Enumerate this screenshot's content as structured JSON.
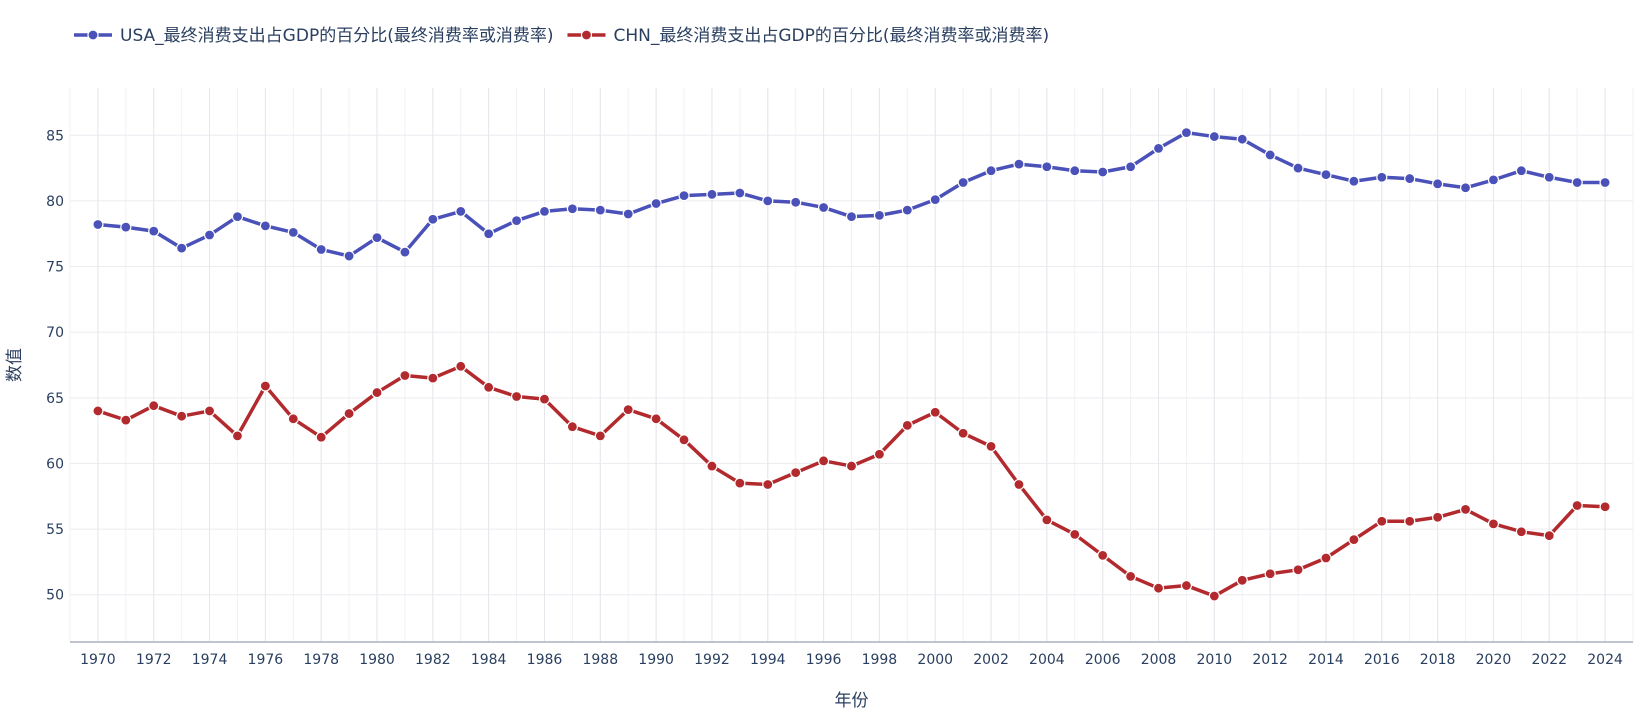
{
  "chart_data": {
    "type": "line",
    "xlabel": "年份",
    "ylabel": "数值",
    "x_ticks": [
      1970,
      1972,
      1974,
      1976,
      1978,
      1980,
      1982,
      1984,
      1986,
      1988,
      1990,
      1992,
      1994,
      1996,
      1998,
      2000,
      2002,
      2004,
      2006,
      2008,
      2010,
      2012,
      2014,
      2016,
      2018,
      2020,
      2022,
      2024
    ],
    "y_ticks": [
      50,
      55,
      60,
      65,
      70,
      75,
      80,
      85
    ],
    "xlim": [
      1969,
      2025
    ],
    "ylim": [
      46.4,
      88.6
    ],
    "grid": true,
    "legend_position": "top-left",
    "x": [
      1970,
      1971,
      1972,
      1973,
      1974,
      1975,
      1976,
      1977,
      1978,
      1979,
      1980,
      1981,
      1982,
      1983,
      1984,
      1985,
      1986,
      1987,
      1988,
      1989,
      1990,
      1991,
      1992,
      1993,
      1994,
      1995,
      1996,
      1997,
      1998,
      1999,
      2000,
      2001,
      2002,
      2003,
      2004,
      2005,
      2006,
      2007,
      2008,
      2009,
      2010,
      2011,
      2012,
      2013,
      2014,
      2015,
      2016,
      2017,
      2018,
      2019,
      2020,
      2021,
      2022,
      2023,
      2024
    ],
    "series": [
      {
        "name": "USA_最终消费支出占GDP的百分比(最终消费率或消费率)",
        "color": "#4a51b8",
        "values": [
          78.2,
          78.0,
          77.7,
          76.4,
          77.4,
          78.8,
          78.1,
          77.6,
          76.3,
          75.8,
          77.2,
          76.1,
          78.6,
          79.2,
          77.5,
          78.5,
          79.2,
          79.4,
          79.3,
          79.0,
          79.8,
          80.4,
          80.5,
          80.6,
          80.0,
          79.9,
          79.5,
          78.8,
          78.9,
          79.3,
          80.1,
          81.4,
          82.3,
          82.8,
          82.6,
          82.3,
          82.2,
          82.6,
          84.0,
          85.2,
          84.9,
          84.7,
          83.5,
          82.5,
          82.0,
          81.5,
          81.8,
          81.7,
          81.3,
          81.0,
          81.6,
          82.3,
          81.8,
          81.4,
          81.4
        ]
      },
      {
        "name": "CHN_最终消费支出占GDP的百分比(最终消费率或消费率)",
        "color": "#b22a2e",
        "values": [
          64.0,
          63.3,
          64.4,
          63.6,
          64.0,
          62.1,
          65.9,
          63.4,
          62.0,
          63.8,
          65.4,
          66.7,
          66.5,
          67.4,
          65.8,
          65.1,
          64.9,
          62.8,
          62.1,
          64.1,
          63.4,
          61.8,
          59.8,
          58.5,
          58.4,
          59.3,
          60.2,
          59.8,
          60.7,
          62.9,
          63.9,
          62.3,
          61.3,
          58.4,
          55.7,
          54.6,
          53.0,
          51.4,
          50.5,
          50.7,
          49.9,
          51.1,
          51.6,
          51.9,
          52.8,
          54.2,
          55.6,
          55.6,
          55.9,
          56.5,
          55.4,
          54.8,
          54.5,
          56.8,
          56.7
        ]
      }
    ]
  }
}
